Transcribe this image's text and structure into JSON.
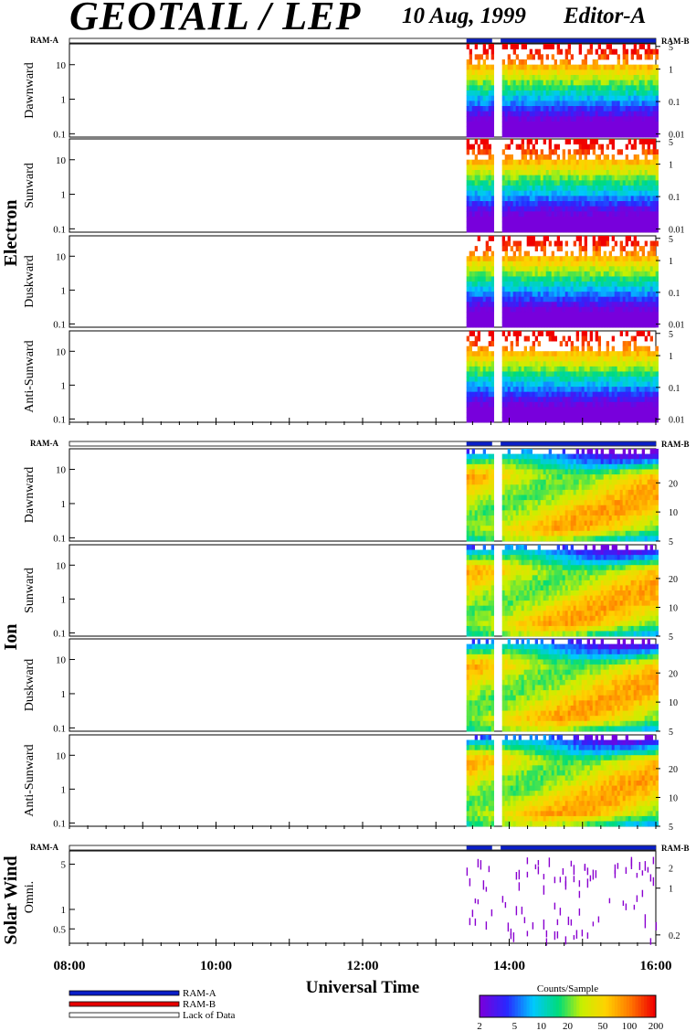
{
  "header": {
    "title": "GEOTAIL / LEP",
    "date": "10 Aug, 1999",
    "editor": "Editor-A"
  },
  "chart_data": {
    "type": "heatmap",
    "xlabel": "Universal Time",
    "x_ticks": [
      "08:00",
      "10:00",
      "12:00",
      "14:00",
      "16:00"
    ],
    "xlim": [
      "08:00",
      "16:00"
    ],
    "data_start": "13:25",
    "data_gap": [
      "13:46",
      "13:50"
    ],
    "groups": [
      {
        "name": "Electron",
        "ram_labels": [
          "RAM-A",
          "RAM-B"
        ],
        "panels": [
          {
            "label": "Dawnward",
            "left_ticks": [
              "10",
              "1",
              "0.1"
            ],
            "right_ticks": [
              "5",
              "1",
              "0.1",
              "0.01"
            ]
          },
          {
            "label": "Sunward",
            "left_ticks": [
              "10",
              "1",
              "0.1"
            ],
            "right_ticks": [
              "5",
              "1",
              "0.1",
              "0.01"
            ]
          },
          {
            "label": "Duskward",
            "left_ticks": [
              "10",
              "1",
              "0.1"
            ],
            "right_ticks": [
              "5",
              "1",
              "0.1",
              "0.01"
            ]
          },
          {
            "label": "Anti-Sunward",
            "left_ticks": [
              "10",
              "1",
              "0.1"
            ],
            "right_ticks": [
              "5",
              "1",
              "0.1",
              "0.01"
            ]
          }
        ]
      },
      {
        "name": "Ion",
        "ram_labels": [
          "RAM-A",
          "RAM-B"
        ],
        "panels": [
          {
            "label": "Dawnward",
            "left_ticks": [
              "10",
              "1",
              "0.1"
            ],
            "right_ticks": [
              "20",
              "10",
              "5"
            ]
          },
          {
            "label": "Sunward",
            "left_ticks": [
              "10",
              "1",
              "0.1"
            ],
            "right_ticks": [
              "20",
              "10",
              "5"
            ]
          },
          {
            "label": "Duskward",
            "left_ticks": [
              "10",
              "1",
              "0.1"
            ],
            "right_ticks": [
              "20",
              "10",
              "5"
            ]
          },
          {
            "label": "Anti-Sunward",
            "left_ticks": [
              "10",
              "1",
              "0.1"
            ],
            "right_ticks": [
              "20",
              "10",
              "5"
            ]
          }
        ]
      },
      {
        "name": "Solar Wind",
        "ram_labels": [
          "RAM-A",
          "RAM-B"
        ],
        "panels": [
          {
            "label": "Omni.",
            "left_ticks": [
              "5",
              "1",
              "0.5"
            ],
            "right_ticks": [
              "2",
              "1",
              "0.2"
            ]
          }
        ]
      }
    ],
    "legend": {
      "items": [
        "RAM-A",
        "RAM-B",
        "Lack of Data"
      ],
      "colors": [
        "#0a1ec8",
        "#e60000",
        "#ffffff"
      ]
    },
    "colorbar": {
      "title": "Counts/Sample",
      "ticks": [
        "2",
        "5",
        "10",
        "20",
        "50",
        "100",
        "200"
      ],
      "scale": "log"
    }
  }
}
